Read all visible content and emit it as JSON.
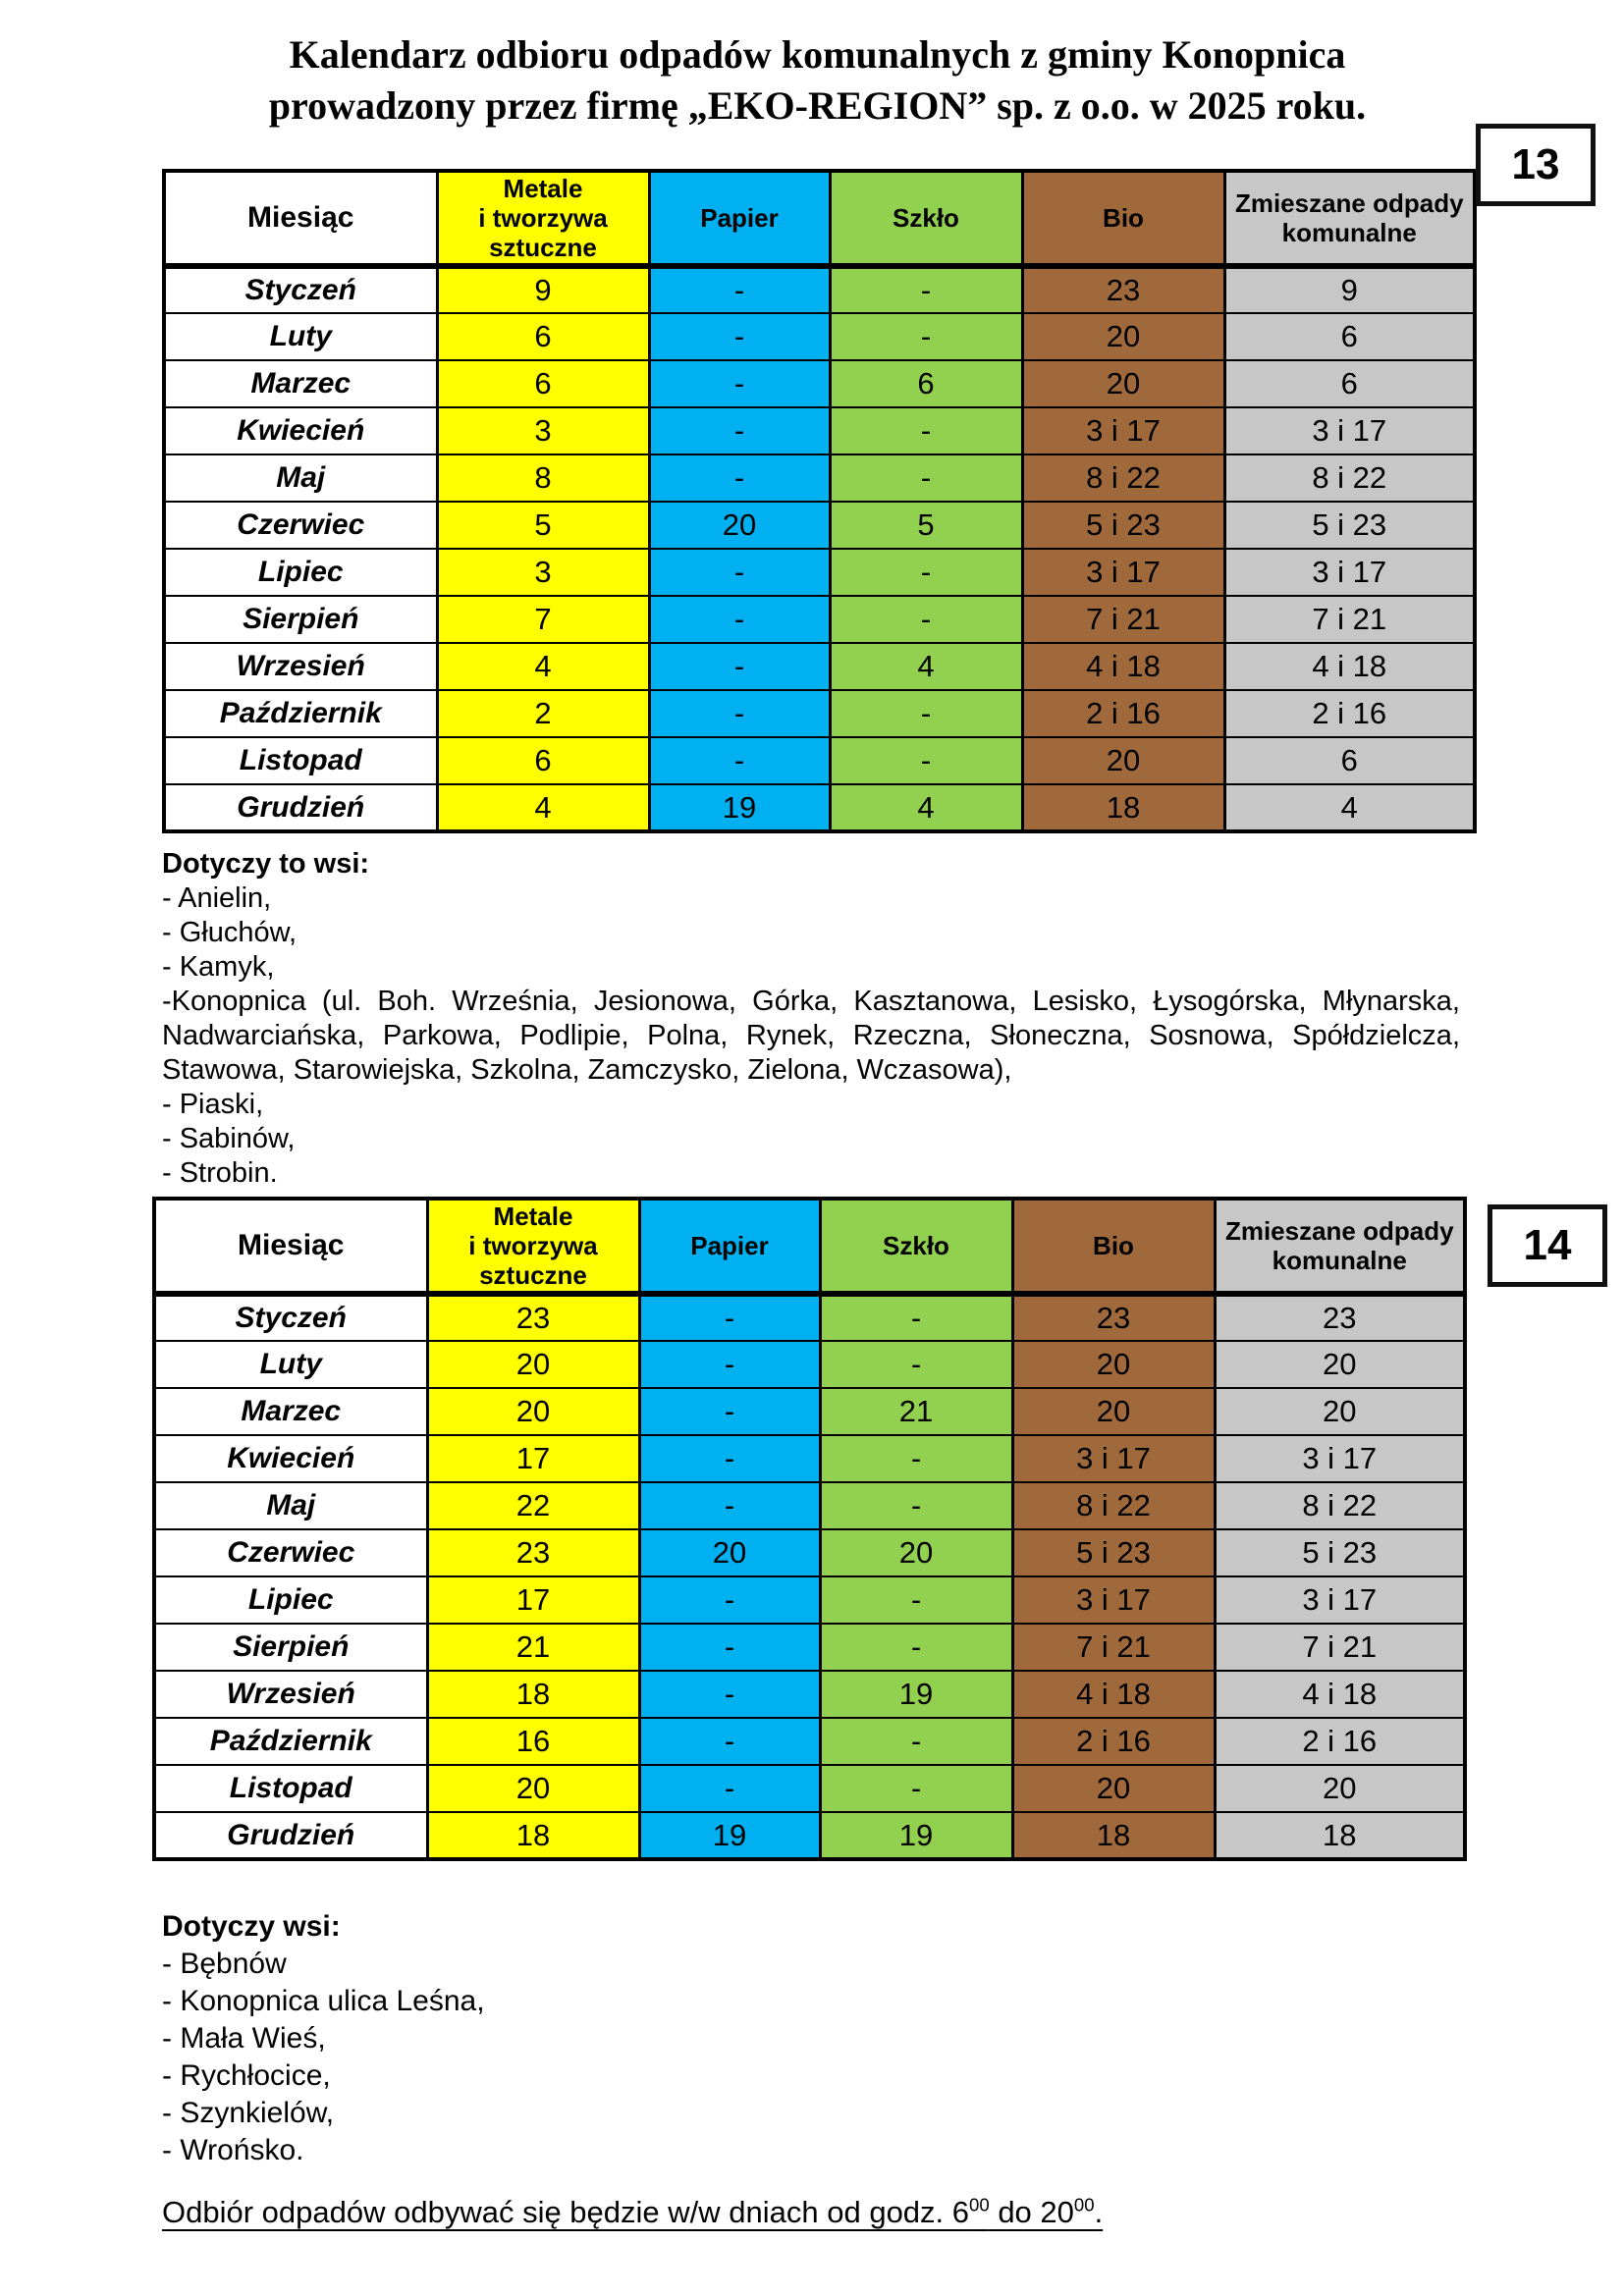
{
  "title": {
    "line1": "Kalendarz odbioru odpadów komunalnych z gminy Konopnica",
    "line2": "prowadzony przez firmę „EKO-REGION” sp. z o.o. w 2025 roku."
  },
  "colors": {
    "metals_yellow": "#ffff00",
    "paper_blue": "#00b0f0",
    "glass_green": "#92d050",
    "bio_brown": "#a0693c",
    "mixed_gray": "#c7c7c7"
  },
  "table1": {
    "page_number": "13",
    "columns": [
      "Miesiąc",
      "Metale\ni tworzywa\nsztuczne",
      "Papier",
      "Szkło",
      "Bio",
      "Zmieszane odpady\nkomunalne"
    ],
    "rows": [
      [
        "Styczeń",
        "9",
        "-",
        "-",
        "23",
        "9"
      ],
      [
        "Luty",
        "6",
        "-",
        "-",
        "20",
        "6"
      ],
      [
        "Marzec",
        "6",
        "-",
        "6",
        "20",
        "6"
      ],
      [
        "Kwiecień",
        "3",
        "-",
        "-",
        "3 i 17",
        "3 i 17"
      ],
      [
        "Maj",
        "8",
        "-",
        "-",
        "8 i 22",
        "8 i 22"
      ],
      [
        "Czerwiec",
        "5",
        "20",
        "5",
        "5 i 23",
        "5 i 23"
      ],
      [
        "Lipiec",
        "3",
        "-",
        "-",
        "3 i 17",
        "3 i 17"
      ],
      [
        "Sierpień",
        "7",
        "-",
        "-",
        "7 i 21",
        "7 i 21"
      ],
      [
        "Wrzesień",
        "4",
        "-",
        "4",
        "4 i 18",
        "4 i 18"
      ],
      [
        "Październik",
        "2",
        "-",
        "-",
        "2 i 16",
        "2 i 16"
      ],
      [
        "Listopad",
        "6",
        "-",
        "-",
        "20",
        "6"
      ],
      [
        "Grudzień",
        "4",
        "19",
        "4",
        "18",
        "4"
      ]
    ]
  },
  "notes1": {
    "heading": "Dotyczy to wsi:",
    "items": [
      "- Anielin,",
      "- Głuchów,",
      "- Kamyk,",
      "-Konopnica (ul. Boh. Września, Jesionowa, Górka, Kasztanowa, Lesisko, Łysogórska, Młynarska, Nadwarciańska, Parkowa, Podlipie, Polna, Rynek, Rzeczna, Słoneczna, Sosnowa, Spółdzielcza, Stawowa, Starowiejska, Szkolna, Zamczysko, Zielona, Wczasowa),",
      "- Piaski,",
      "- Sabinów,",
      "- Strobin."
    ]
  },
  "table2": {
    "page_number": "14",
    "columns": [
      "Miesiąc",
      "Metale\ni tworzywa sztuczne",
      "Papier",
      "Szkło",
      "Bio",
      "Zmieszane odpady\nkomunalne"
    ],
    "rows": [
      [
        "Styczeń",
        "23",
        "-",
        "-",
        "23",
        "23"
      ],
      [
        "Luty",
        "20",
        "-",
        "-",
        "20",
        "20"
      ],
      [
        "Marzec",
        "20",
        "-",
        "21",
        "20",
        "20"
      ],
      [
        "Kwiecień",
        "17",
        "-",
        "-",
        "3 i 17",
        "3 i 17"
      ],
      [
        "Maj",
        "22",
        "-",
        "-",
        "8 i 22",
        "8 i 22"
      ],
      [
        "Czerwiec",
        "23",
        "20",
        "20",
        "5 i 23",
        "5 i 23"
      ],
      [
        "Lipiec",
        "17",
        "-",
        "-",
        "3 i 17",
        "3 i 17"
      ],
      [
        "Sierpień",
        "21",
        "-",
        "-",
        "7 i 21",
        "7 i 21"
      ],
      [
        "Wrzesień",
        "18",
        "-",
        "19",
        "4 i 18",
        "4 i 18"
      ],
      [
        "Październik",
        "16",
        "-",
        "-",
        "2 i 16",
        "2 i 16"
      ],
      [
        "Listopad",
        "20",
        "-",
        "-",
        "20",
        "20"
      ],
      [
        "Grudzień",
        "18",
        "19",
        "19",
        "18",
        "18"
      ]
    ]
  },
  "notes2": {
    "heading": "Dotyczy wsi:",
    "items": [
      "- Bębnów",
      "- Konopnica ulica Leśna,",
      "- Mała Wieś,",
      "- Rychłocice,",
      "- Szynkielów,",
      "- Wrońsko."
    ]
  },
  "footer": {
    "part1": "Odbiór odpadów odbywać się będzie w/w dniach od godz. 6",
    "sup1": "00",
    "part2": " do 20",
    "sup2": "00",
    "part3": "."
  }
}
